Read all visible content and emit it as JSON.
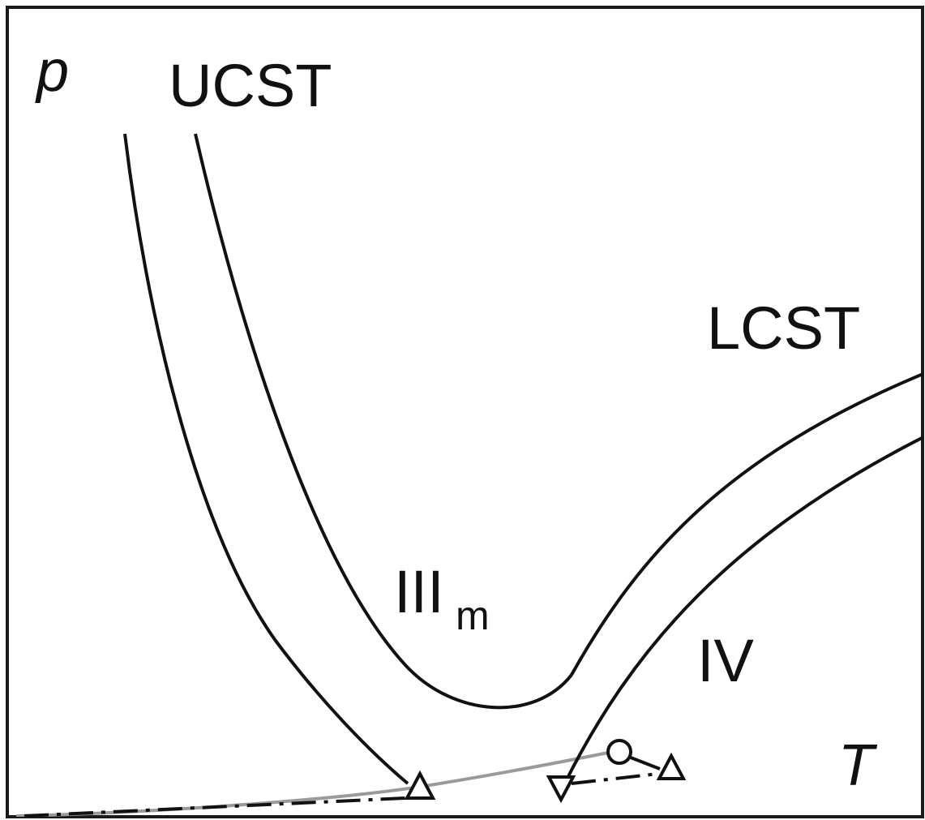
{
  "labels": {
    "y_axis": "p",
    "x_axis": "T",
    "ucst": "UCST",
    "lcst": "LCST",
    "region_iii": "III",
    "region_iii_sub": "m",
    "region_iv": "IV"
  },
  "colors": {
    "frame": "#1a1a1a",
    "curve": "#111111",
    "vapor_curve": "#9a9a9a",
    "background": "#ffffff"
  }
}
